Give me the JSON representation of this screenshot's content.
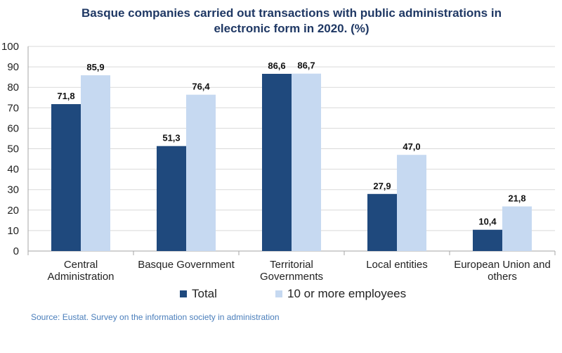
{
  "chart_data": {
    "type": "bar",
    "title_lines": [
      "Basque companies carried out transactions with public administrations in",
      "electronic form in 2020. (%)"
    ],
    "categories": [
      [
        "Central",
        "Administration"
      ],
      [
        "Basque Government"
      ],
      [
        "Territorial",
        "Governments"
      ],
      [
        "Local entities"
      ],
      [
        "European Union and",
        "others"
      ]
    ],
    "series": [
      {
        "name": "Total",
        "color": "#1f497d",
        "values": [
          71.8,
          51.3,
          86.6,
          27.9,
          10.4
        ],
        "labels": [
          "71,8",
          "51,3",
          "86,6",
          "27,9",
          "10,4"
        ]
      },
      {
        "name": "10 or more employees",
        "color": "#c6d9f1",
        "values": [
          85.9,
          76.4,
          86.7,
          47.0,
          21.8
        ],
        "labels": [
          "85,9",
          "76,4",
          "86,7",
          "47,0",
          "21,8"
        ]
      }
    ],
    "ylim": [
      0,
      100
    ],
    "yticks": [
      0,
      10,
      20,
      30,
      40,
      50,
      60,
      70,
      80,
      90,
      100
    ],
    "grid": true,
    "legend_position": "bottom"
  },
  "source": "Source: Eustat. Survey on the information society in administration"
}
